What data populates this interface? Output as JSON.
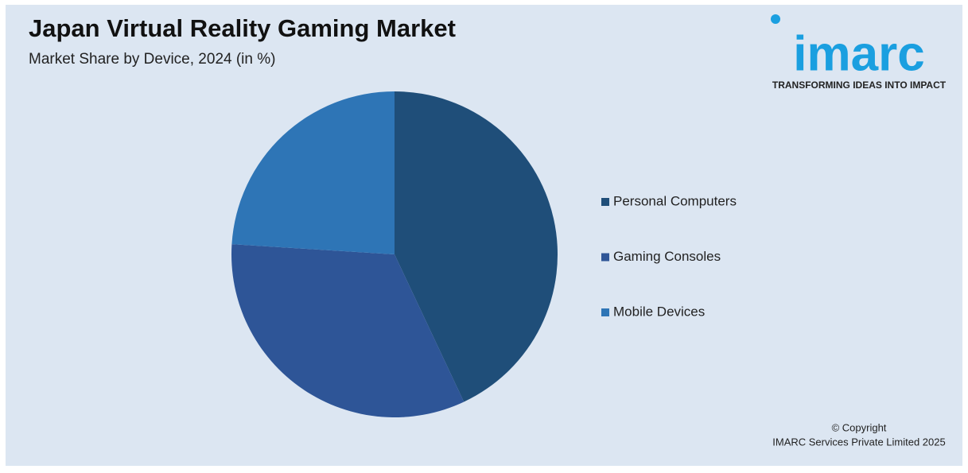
{
  "chart_data": {
    "type": "pie",
    "title": "Japan Virtual Reality Gaming Market",
    "subtitle": "Market Share by Device, 2024 (in %)",
    "categories": [
      "Personal Computers",
      "Gaming Consoles",
      "Mobile Devices"
    ],
    "values": [
      43,
      33,
      24
    ],
    "colors": [
      "#1f4e79",
      "#2e5597",
      "#2e75b6"
    ],
    "legend": "right"
  },
  "logo": {
    "text": "imarc",
    "tagline": "TRANSFORMING IDEAS INTO IMPACT"
  },
  "copyright": [
    "© Copyright",
    "IMARC Services Private Limited 2025"
  ]
}
